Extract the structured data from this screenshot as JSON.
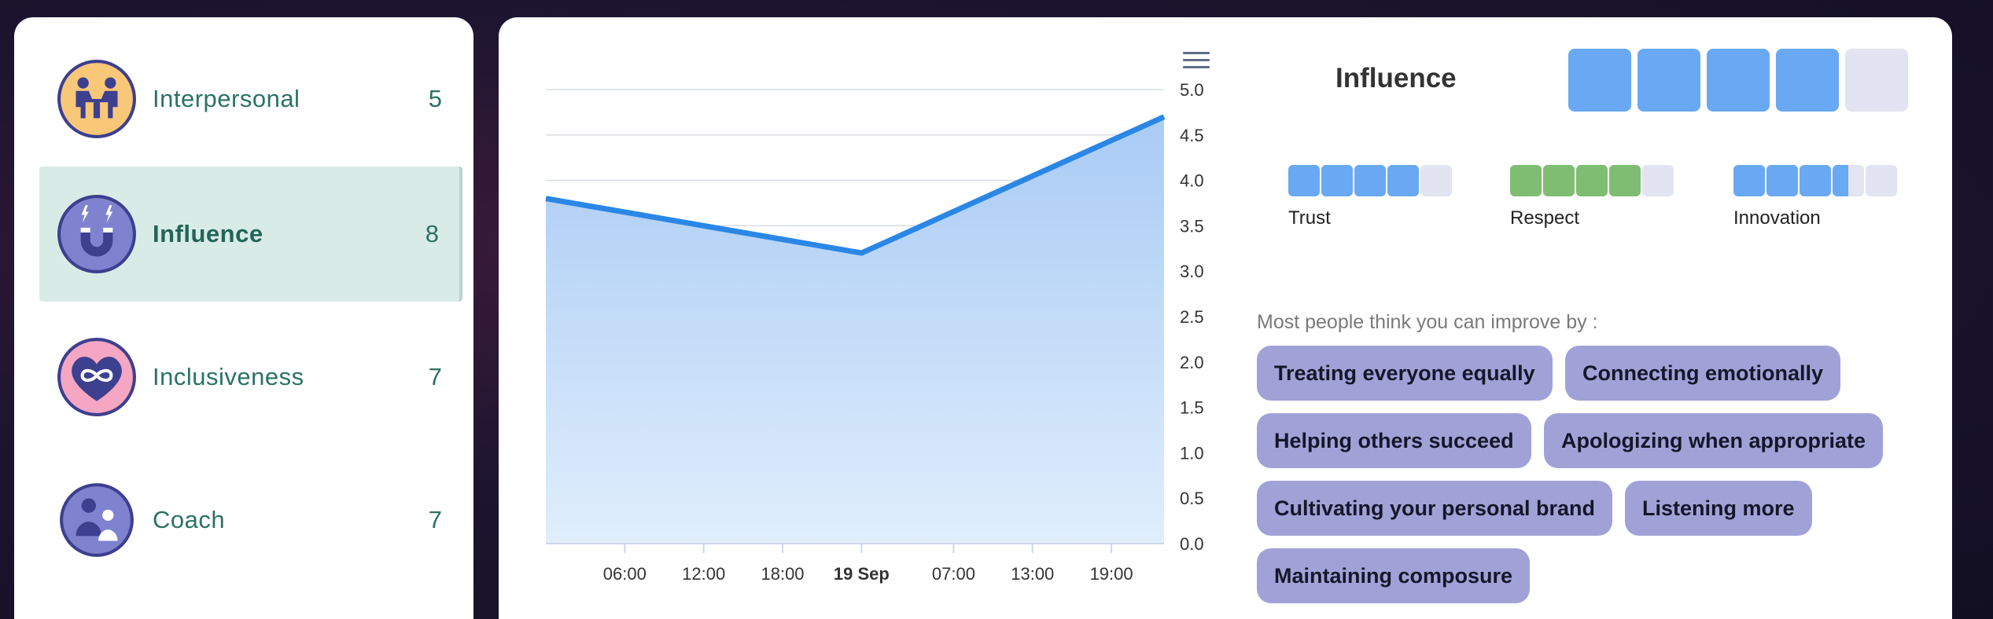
{
  "sidebar": {
    "items": [
      {
        "label": "Interpersonal",
        "count": "5",
        "icon": "interpersonal-icon",
        "selected": false
      },
      {
        "label": "Influence",
        "count": "8",
        "icon": "magnet-icon",
        "selected": true
      },
      {
        "label": "Inclusiveness",
        "count": "7",
        "icon": "heart-infinity-icon",
        "selected": false
      },
      {
        "label": "Coach",
        "count": "7",
        "icon": "coach-icon",
        "selected": false
      }
    ]
  },
  "chart_data": {
    "type": "area",
    "title": "",
    "xlabel": "",
    "ylabel": "",
    "x_ticks": [
      "06:00",
      "12:00",
      "18:00",
      "19 Sep",
      "07:00",
      "13:00",
      "19:00"
    ],
    "y_ticks": [
      "0.0",
      "0.5",
      "1.0",
      "1.5",
      "2.0",
      "2.5",
      "3.0",
      "3.5",
      "4.0",
      "4.5",
      "5.0"
    ],
    "ylim": [
      0,
      5
    ],
    "y_axis_position": "right",
    "grid": true,
    "series": [
      {
        "points": [
          {
            "x": "18 Sep 00:00",
            "y": 3.8
          },
          {
            "x": "19 Sep 00:00",
            "y": 3.2
          },
          {
            "x": "19 Sep 23:00",
            "y": 4.7
          }
        ]
      }
    ],
    "colors": {
      "line": "#2b87e6",
      "fill_top": "#a9cbf5",
      "fill_bottom": "#e0eefc"
    }
  },
  "detail": {
    "title": "Influence",
    "level": 4,
    "max_level": 5,
    "metrics": [
      {
        "label": "Trust",
        "value": 4.0,
        "color": "#69a9f3"
      },
      {
        "label": "Respect",
        "value": 4.0,
        "color": "#7fbd73"
      },
      {
        "label": "Innovation",
        "value": 3.5,
        "color": "#69a9f3"
      }
    ]
  },
  "improve": {
    "heading": "Most people think you can improve by :",
    "chips": [
      "Treating everyone equally",
      "Connecting emotionally",
      "Helping others succeed",
      "Apologizing when appropriate",
      "Cultivating your personal brand",
      "Listening more",
      "Maintaining composure"
    ]
  },
  "colors": {
    "accent_teal": "#2a7265",
    "selected_bg": "#d9ebe6",
    "chip_bg": "#a0a2d7",
    "box_blue": "#69a9f3",
    "box_empty": "#e2e4f1"
  }
}
